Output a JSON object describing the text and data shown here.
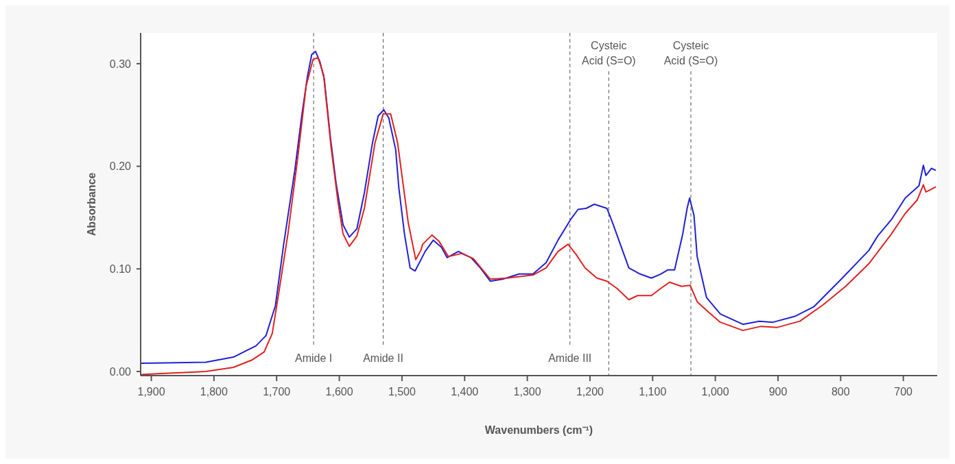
{
  "chart_data": {
    "type": "line",
    "xlabel": "Wavenumbers (cm⁻¹)",
    "ylabel": "Absorbance",
    "xlim": [
      1917,
      646
    ],
    "ylim": [
      -0.004,
      0.33
    ],
    "xticks": [
      {
        "value": 1900,
        "label": "1,900"
      },
      {
        "value": 1800,
        "label": "1,800"
      },
      {
        "value": 1700,
        "label": "1,700"
      },
      {
        "value": 1600,
        "label": "1,600"
      },
      {
        "value": 1500,
        "label": "1,500"
      },
      {
        "value": 1400,
        "label": "1,400"
      },
      {
        "value": 1300,
        "label": "1,300"
      },
      {
        "value": 1200,
        "label": "1,200"
      },
      {
        "value": 1100,
        "label": "1,100"
      },
      {
        "value": 1000,
        "label": "1,000"
      },
      900,
      800,
      700
    ],
    "yticks": [
      {
        "value": 0,
        "label": "0.00"
      },
      {
        "value": 0.1,
        "label": "0.10"
      },
      {
        "value": 0.2,
        "label": "0.20"
      },
      {
        "value": 0.3,
        "label": "0.30"
      }
    ],
    "grid": false,
    "marker": "none",
    "line_style": "solid",
    "series": [
      {
        "color": "#1f1fd6",
        "x": [
          1917,
          1813,
          1769,
          1733,
          1717,
          1702,
          1689,
          1671,
          1660,
          1651,
          1644,
          1638,
          1631,
          1624,
          1614,
          1605,
          1594,
          1584,
          1572,
          1560,
          1547,
          1538,
          1529,
          1521,
          1510,
          1505,
          1496,
          1487,
          1479,
          1463,
          1450,
          1437,
          1428,
          1410,
          1390,
          1375,
          1359,
          1339,
          1313,
          1291,
          1270,
          1251,
          1231,
          1219,
          1206,
          1193,
          1173,
          1164,
          1138,
          1120,
          1102,
          1087,
          1076,
          1065,
          1052,
          1045,
          1041,
          1034,
          1029,
          1014,
          992,
          956,
          930,
          908,
          872,
          843,
          799,
          755,
          741,
          719,
          697,
          675,
          668,
          664,
          655,
          648
        ],
        "values": [
          0.008,
          0.009,
          0.014,
          0.025,
          0.035,
          0.064,
          0.123,
          0.196,
          0.249,
          0.287,
          0.309,
          0.312,
          0.302,
          0.285,
          0.227,
          0.183,
          0.143,
          0.131,
          0.139,
          0.174,
          0.223,
          0.249,
          0.255,
          0.247,
          0.216,
          0.179,
          0.134,
          0.101,
          0.098,
          0.117,
          0.128,
          0.121,
          0.111,
          0.117,
          0.111,
          0.101,
          0.088,
          0.09,
          0.095,
          0.095,
          0.106,
          0.128,
          0.148,
          0.158,
          0.159,
          0.163,
          0.159,
          0.145,
          0.101,
          0.095,
          0.091,
          0.095,
          0.099,
          0.099,
          0.134,
          0.159,
          0.169,
          0.152,
          0.112,
          0.072,
          0.056,
          0.046,
          0.049,
          0.048,
          0.054,
          0.063,
          0.09,
          0.118,
          0.132,
          0.148,
          0.169,
          0.181,
          0.201,
          0.191,
          0.198,
          0.196
        ]
      },
      {
        "color": "#e0201f",
        "x": [
          1917,
          1813,
          1769,
          1740,
          1720,
          1707,
          1696,
          1682,
          1667,
          1653,
          1642,
          1634,
          1625,
          1613,
          1602,
          1594,
          1584,
          1572,
          1560,
          1543,
          1530,
          1518,
          1507,
          1490,
          1478,
          1470,
          1467,
          1452,
          1441,
          1426,
          1405,
          1386,
          1359,
          1332,
          1291,
          1270,
          1251,
          1235,
          1222,
          1208,
          1189,
          1173,
          1157,
          1138,
          1124,
          1102,
          1087,
          1073,
          1054,
          1040,
          1029,
          1011,
          992,
          956,
          927,
          901,
          865,
          828,
          792,
          755,
          719,
          697,
          678,
          668,
          664,
          648
        ],
        "values": [
          -0.003,
          0.0,
          0.004,
          0.011,
          0.019,
          0.037,
          0.079,
          0.134,
          0.205,
          0.278,
          0.304,
          0.306,
          0.289,
          0.218,
          0.165,
          0.134,
          0.122,
          0.132,
          0.159,
          0.223,
          0.251,
          0.251,
          0.223,
          0.145,
          0.109,
          0.118,
          0.124,
          0.133,
          0.127,
          0.112,
          0.115,
          0.11,
          0.09,
          0.091,
          0.094,
          0.101,
          0.117,
          0.124,
          0.114,
          0.101,
          0.091,
          0.088,
          0.081,
          0.07,
          0.074,
          0.074,
          0.081,
          0.087,
          0.083,
          0.084,
          0.068,
          0.058,
          0.048,
          0.04,
          0.044,
          0.043,
          0.049,
          0.065,
          0.083,
          0.105,
          0.134,
          0.154,
          0.167,
          0.182,
          0.175,
          0.18
        ]
      }
    ],
    "ref_lines": [
      {
        "axis": "x",
        "value": 1641,
        "label": "Amide I",
        "line_style": "dashed",
        "color": "#555555"
      },
      {
        "axis": "x",
        "value": 1530,
        "label": "Amide II",
        "line_style": "dashed",
        "color": "#555555"
      },
      {
        "axis": "x",
        "value": 1232,
        "label": "Amide III",
        "line_style": "dashed",
        "color": "#555555"
      },
      {
        "axis": "x",
        "value": 1170,
        "label": "Cysteic Acid (S=O)",
        "line_style": "dashed",
        "color": "#555555"
      },
      {
        "axis": "x",
        "value": 1039,
        "label": "Cysteic Acid (S=O)",
        "line_style": "dashed",
        "color": "#555555"
      }
    ]
  }
}
